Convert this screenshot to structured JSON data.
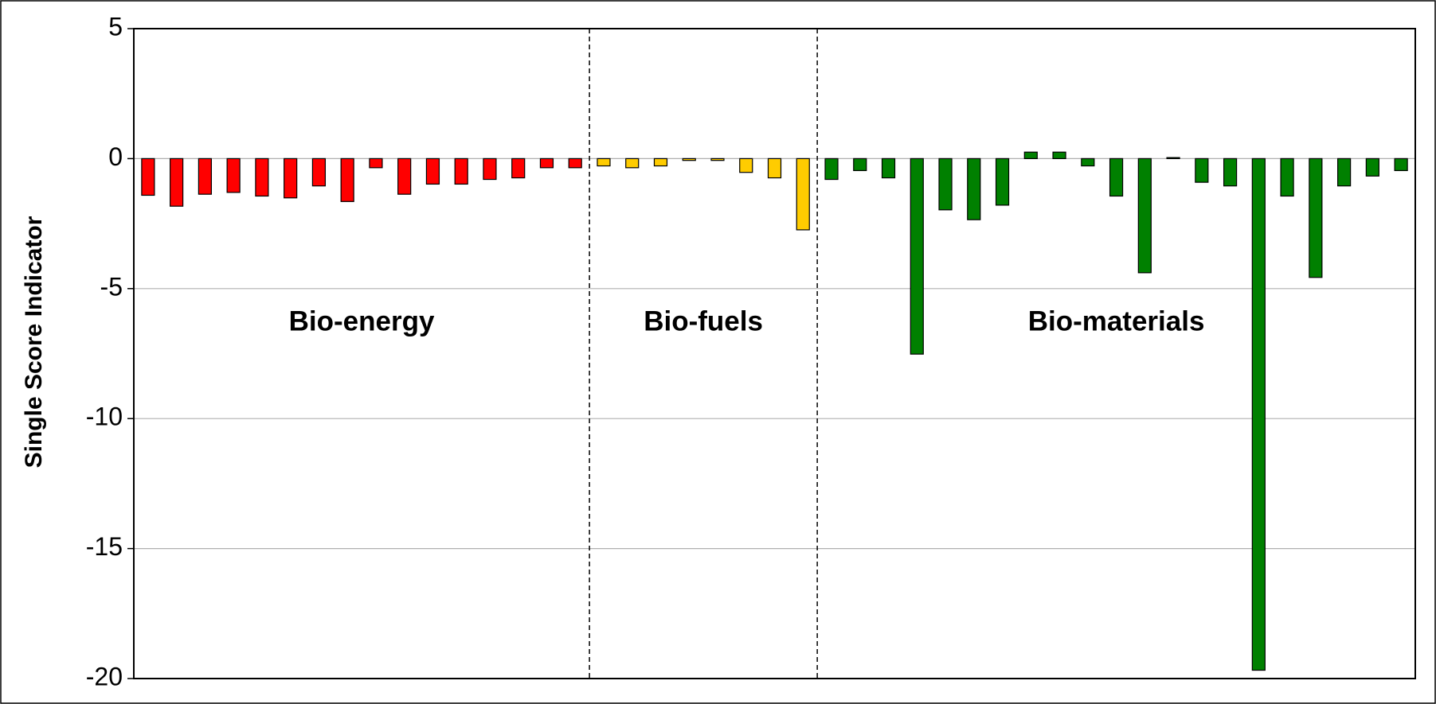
{
  "chart_data": {
    "type": "bar",
    "y_label": "Single Score Indicator",
    "ylim": [
      -20,
      5
    ],
    "yticks": [
      5,
      0,
      -5,
      -10,
      -15,
      -20
    ],
    "grid": true,
    "groups": [
      {
        "name": "Bio-energy",
        "color": "#ff0000",
        "values": [
          -1.41,
          -1.83,
          -1.37,
          -1.3,
          -1.44,
          -1.51,
          -1.05,
          -1.65,
          -0.35,
          -1.37,
          -0.98,
          -0.98,
          -0.8,
          -0.74,
          -0.35,
          -0.35
        ]
      },
      {
        "name": "Bio-fuels",
        "color": "#ffcc00",
        "values": [
          -0.28,
          -0.35,
          -0.28,
          -0.07,
          -0.07,
          -0.53,
          -0.74,
          -2.74
        ]
      },
      {
        "name": "Bio-materials",
        "color": "#008000",
        "values": [
          -0.8,
          -0.46,
          -0.74,
          -7.52,
          -1.97,
          -2.35,
          -1.79,
          0.25,
          0.25,
          -0.28,
          -1.44,
          -4.39,
          0.04,
          -0.91,
          -1.05,
          -19.68,
          -1.44,
          -4.57,
          -1.05,
          -0.67,
          -0.46
        ]
      }
    ]
  }
}
